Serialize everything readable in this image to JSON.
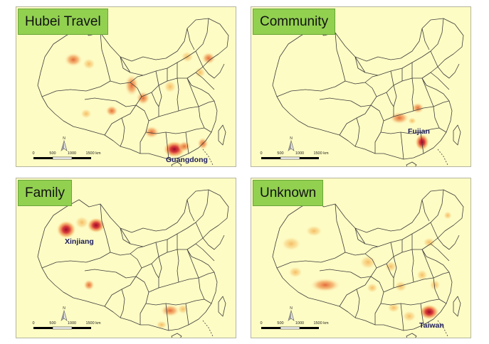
{
  "panels": [
    {
      "title": "Hubei Travel",
      "highlight_label": "Guangdong",
      "scale_labels": [
        "0",
        "500",
        "1000",
        "1500 km"
      ]
    },
    {
      "title": "Community",
      "highlight_label": "Fujian",
      "scale_labels": [
        "0",
        "500",
        "1000",
        "1500 km"
      ]
    },
    {
      "title": "Family",
      "highlight_label": "Xinjiang",
      "scale_labels": [
        "0",
        "500",
        "1000",
        "1500 km"
      ]
    },
    {
      "title": "Unknown",
      "highlight_label": "Taiwan",
      "scale_labels": [
        "0",
        "500",
        "1000",
        "1500 km"
      ]
    }
  ],
  "colors": {
    "background": "#fdfcc4",
    "title_bg": "#92d050",
    "hotspot_low": "#f6c46a",
    "hotspot_high": "#b5122a",
    "border_line": "#444444"
  }
}
